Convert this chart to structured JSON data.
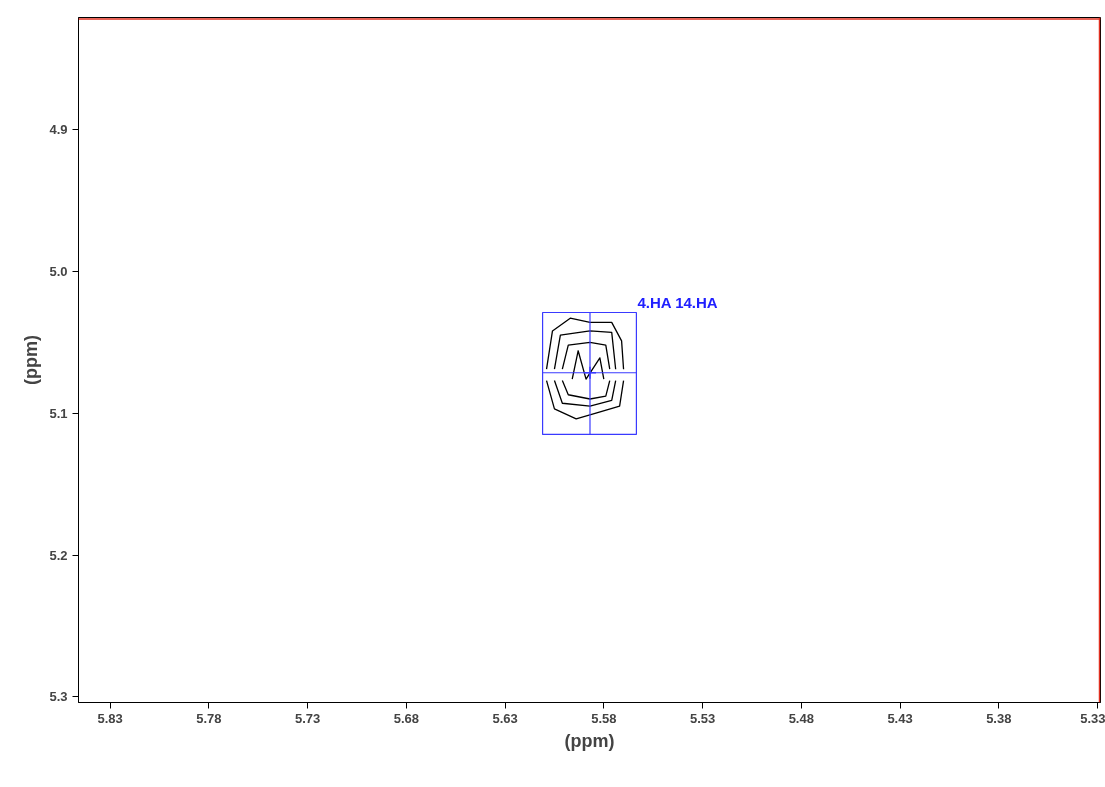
{
  "chart_data": {
    "type": "line",
    "xlabel": "(ppm)",
    "ylabel": "(ppm)",
    "xlim": [
      5.846,
      5.3285
    ],
    "ylim": [
      5.304,
      4.821
    ],
    "xticks": [
      5.83,
      5.78,
      5.73,
      5.68,
      5.63,
      5.58,
      5.53,
      5.48,
      5.43,
      5.38,
      5.33
    ],
    "yticks": [
      4.9,
      {
        "value": 5,
        "label": "5.0"
      },
      5.1,
      5.2,
      5.3
    ],
    "grid": false,
    "line_style": "solid",
    "marker": "none",
    "series": [
      {
        "color": "#000000",
        "x": [
          5.609,
          5.606,
          5.597,
          5.587,
          5.576,
          5.571,
          5.57
        ],
        "values": [
          5.069,
          5.042,
          5.033,
          5.036,
          5.036,
          5.049,
          5.069
        ]
      },
      {
        "color": "#000000",
        "x": [
          5.609,
          5.605,
          5.594,
          5.584,
          5.572,
          5.57
        ],
        "values": [
          5.077,
          5.097,
          5.104,
          5.1,
          5.095,
          5.077
        ]
      },
      {
        "color": "#000000",
        "x": [
          5.605,
          5.602,
          5.587,
          5.576,
          5.574
        ],
        "values": [
          5.069,
          5.045,
          5.042,
          5.043,
          5.069
        ]
      },
      {
        "color": "#000000",
        "x": [
          5.605,
          5.601,
          5.587,
          5.576,
          5.574
        ],
        "values": [
          5.077,
          5.093,
          5.095,
          5.091,
          5.077
        ]
      },
      {
        "color": "#000000",
        "x": [
          5.601,
          5.598,
          5.587,
          5.579,
          5.577
        ],
        "values": [
          5.069,
          5.052,
          5.05,
          5.052,
          5.069
        ]
      },
      {
        "color": "#000000",
        "x": [
          5.601,
          5.598,
          5.587,
          5.579,
          5.577
        ],
        "values": [
          5.077,
          5.087,
          5.09,
          5.088,
          5.077
        ]
      },
      {
        "color": "#000000",
        "x": [
          5.596,
          5.593,
          5.589,
          5.582,
          5.58
        ],
        "values": [
          5.076,
          5.056,
          5.076,
          5.061,
          5.076
        ]
      },
      {
        "type": "scatter",
        "marker": "cross",
        "color": "#3a3aff",
        "x": [
          5.587
        ],
        "values": [
          5.0715
        ],
        "xerrors": [
          [
            5.611,
            5.5635
          ]
        ],
        "errors": [
          [
            5.115,
            5.029
          ]
        ]
      }
    ],
    "ref_lines": [
      {
        "axis": "x",
        "value": 5.329,
        "color": "#e03020"
      },
      {
        "axis": "y",
        "value": 4.822,
        "color": "#e03020"
      }
    ],
    "annotations": [
      "4.HA 14.HA"
    ]
  }
}
